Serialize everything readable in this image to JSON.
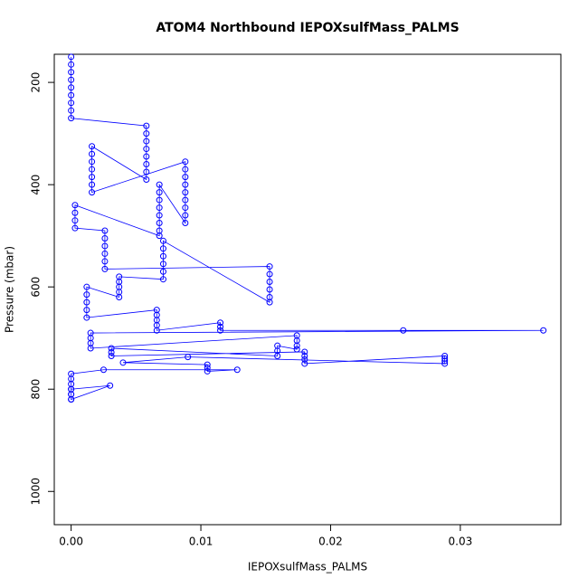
{
  "chart_data": {
    "type": "scatter",
    "title": "ATOM4 Northbound IEPOXsulfMass_PALMS",
    "x_label": "IEPOXsulfMass_PALMS",
    "y_label": "Pressure (mbar)",
    "color": "#0000ff",
    "connect": true,
    "x": [
      0,
      0,
      0,
      0,
      0,
      0,
      0,
      0,
      0,
      0.0058,
      0.0058,
      0.0058,
      0.0058,
      0.0058,
      0.0058,
      0.0058,
      0.0058,
      0.0016,
      0.0016,
      0.0016,
      0.0016,
      0.0016,
      0.0016,
      0.0016,
      0.0088,
      0.0088,
      0.0088,
      0.0088,
      0.0088,
      0.0088,
      0.0088,
      0.0088,
      0.0088,
      0.0068,
      0.0068,
      0.0068,
      0.0068,
      0.0068,
      0.0068,
      0.0068,
      0.0068,
      0.0003,
      0.0003,
      0.0003,
      0.0003,
      0.0026,
      0.0026,
      0.0026,
      0.0026,
      0.0026,
      0.0026,
      0.0153,
      0.0153,
      0.0153,
      0.0153,
      0.0153,
      0.0153,
      0.0071,
      0.0071,
      0.0071,
      0.0071,
      0.0071,
      0.0071,
      0.0037,
      0.0037,
      0.0037,
      0.0037,
      0.0037,
      0.0012,
      0.0012,
      0.0012,
      0.0012,
      0.0012,
      0.0066,
      0.0066,
      0.0066,
      0.0066,
      0.0066,
      0.0115,
      0.0115,
      0.0115,
      0.0256,
      0.0364,
      0.0015,
      0.0015,
      0.0015,
      0.0015,
      0.0174,
      0.0174,
      0.0174,
      0.0174,
      0.0159,
      0.0159,
      0.0159,
      0.0031,
      0.0031,
      0.0031,
      0.018,
      0.018,
      0.018,
      0.018,
      0.0288,
      0.0288,
      0.0288,
      0.0288,
      0.009,
      0.004,
      0.0105,
      0.0105,
      0.0105,
      0.0128,
      0.0025,
      0,
      0,
      0,
      0,
      0,
      0,
      0.003,
      0,
      0,
      0
    ],
    "y": [
      150,
      165,
      180,
      195,
      210,
      225,
      240,
      255,
      270,
      285,
      300,
      315,
      330,
      345,
      360,
      375,
      390,
      325,
      340,
      355,
      370,
      385,
      400,
      415,
      355,
      370,
      385,
      400,
      415,
      430,
      445,
      460,
      475,
      400,
      415,
      430,
      445,
      460,
      475,
      490,
      500,
      440,
      455,
      470,
      485,
      490,
      505,
      520,
      535,
      550,
      565,
      560,
      575,
      590,
      605,
      620,
      630,
      510,
      525,
      540,
      555,
      570,
      585,
      580,
      590,
      600,
      610,
      620,
      600,
      615,
      630,
      645,
      660,
      645,
      655,
      665,
      675,
      685,
      670,
      678,
      685,
      685,
      685,
      690,
      700,
      710,
      720,
      695,
      705,
      715,
      722,
      715,
      725,
      735,
      720,
      728,
      735,
      727,
      735,
      742,
      750,
      735,
      740,
      745,
      750,
      737,
      748,
      752,
      758,
      765,
      762,
      762,
      770,
      780,
      790,
      800,
      810,
      820,
      793,
      800,
      810,
      820
    ],
    "xlim": [
      -0.0013,
      0.03775
    ],
    "ylim": [
      1065,
      145
    ],
    "xticks": [
      {
        "value": 0,
        "label": "0.00"
      },
      0.01,
      0.02,
      0.03
    ],
    "yticks": [
      200,
      400,
      600,
      800,
      1000
    ]
  }
}
